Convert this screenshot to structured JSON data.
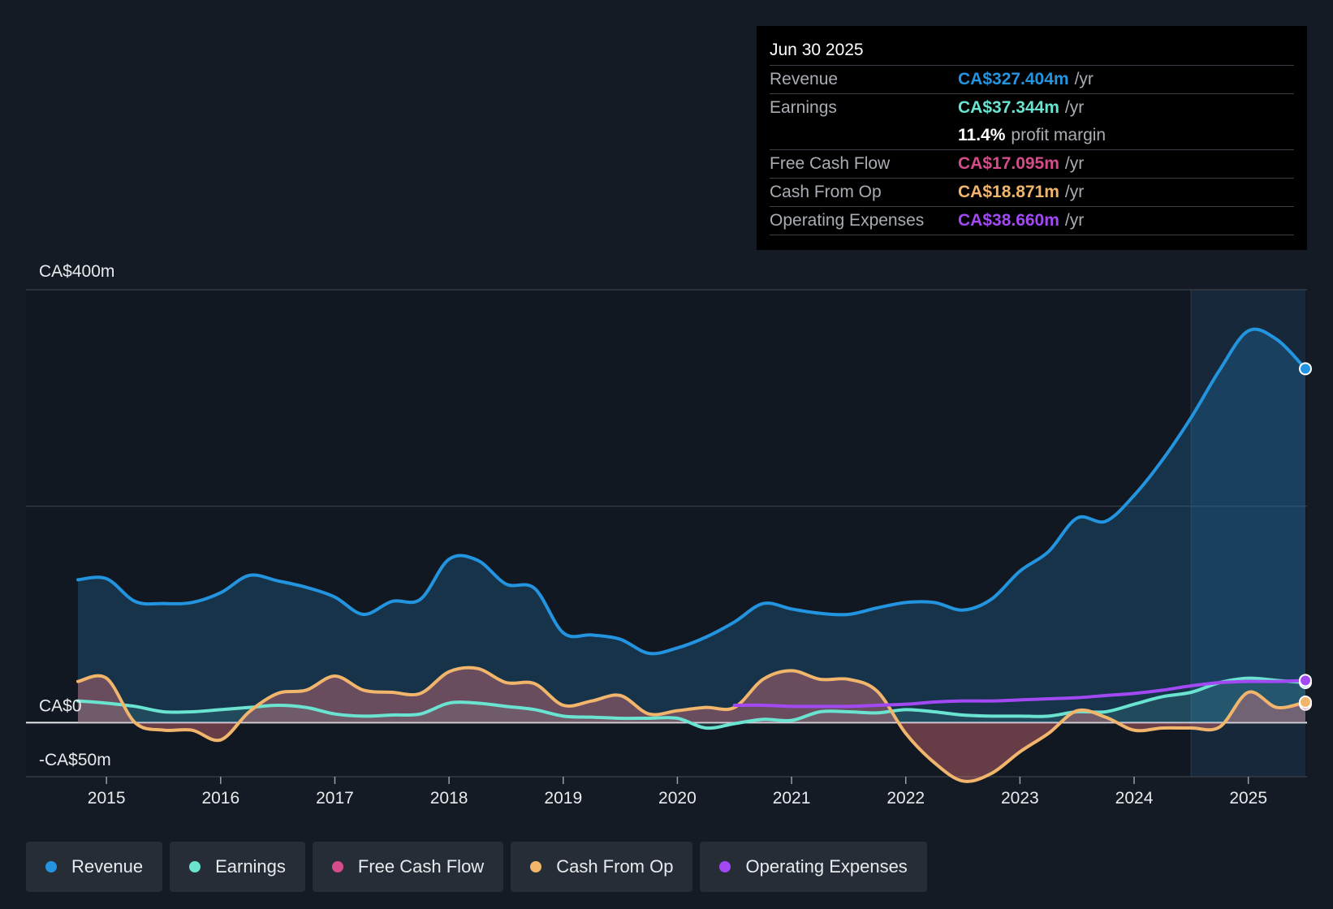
{
  "tooltip": {
    "date": "Jun 30 2025",
    "rows": [
      {
        "label": "Revenue",
        "value": "CA$327.404m",
        "unit": "/yr",
        "color": "#2394df"
      },
      {
        "label": "Earnings",
        "value": "CA$37.344m",
        "unit": "/yr",
        "color": "#6be3d1"
      },
      {
        "label": "Free Cash Flow",
        "value": "CA$17.095m",
        "unit": "/yr",
        "color": "#d44d8a"
      },
      {
        "label": "Cash From Op",
        "value": "CA$18.871m",
        "unit": "/yr",
        "color": "#f1b56b"
      },
      {
        "label": "Operating Expenses",
        "value": "CA$38.660m",
        "unit": "/yr",
        "color": "#a249f4"
      }
    ],
    "margin_value": "11.4%",
    "margin_label": "profit margin"
  },
  "legend": [
    {
      "label": "Revenue",
      "color": "#2394df"
    },
    {
      "label": "Earnings",
      "color": "#6be3d1"
    },
    {
      "label": "Free Cash Flow",
      "color": "#d44d8a"
    },
    {
      "label": "Cash From Op",
      "color": "#f1b56b"
    },
    {
      "label": "Operating Expenses",
      "color": "#a249f4"
    }
  ],
  "chart_data": {
    "type": "area",
    "title": "",
    "xlabel": "",
    "ylabel": "",
    "ylim": [
      -50,
      400
    ],
    "xlim": [
      2014.75,
      2025.5
    ],
    "y_tick_labels": [
      {
        "value": 400,
        "label": "CA$400m"
      },
      {
        "value": 0,
        "label": "CA$0"
      },
      {
        "value": -50,
        "label": "-CA$50m"
      }
    ],
    "gridlines": [
      400,
      200,
      0,
      -50
    ],
    "x_ticks": [
      2015,
      2016,
      2017,
      2018,
      2019,
      2020,
      2021,
      2022,
      2023,
      2024,
      2025
    ],
    "highlight_from": 2024.5,
    "series": [
      {
        "name": "Revenue",
        "color": "#2394df",
        "fill": true,
        "x": [
          2014.75,
          2015.0,
          2015.25,
          2015.5,
          2015.75,
          2016.0,
          2016.25,
          2016.5,
          2016.75,
          2017.0,
          2017.25,
          2017.5,
          2017.75,
          2018.0,
          2018.25,
          2018.5,
          2018.75,
          2019.0,
          2019.25,
          2019.5,
          2019.75,
          2020.0,
          2020.25,
          2020.5,
          2020.75,
          2021.0,
          2021.25,
          2021.5,
          2021.75,
          2022.0,
          2022.25,
          2022.5,
          2022.75,
          2023.0,
          2023.25,
          2023.5,
          2023.75,
          2024.0,
          2024.25,
          2024.5,
          2024.75,
          2025.0,
          2025.25,
          2025.5
        ],
        "values": [
          132,
          133,
          112,
          110,
          111,
          120,
          136,
          131,
          125,
          116,
          100,
          112,
          114,
          151,
          150,
          128,
          124,
          83,
          81,
          77,
          64,
          69,
          79,
          93,
          110,
          105,
          101,
          100,
          106,
          111,
          111,
          104,
          114,
          140,
          158,
          189,
          186,
          210,
          243,
          282,
          326,
          362,
          354,
          327
        ]
      },
      {
        "name": "Earnings",
        "color": "#6be3d1",
        "fill": true,
        "x": [
          2014.75,
          2015.0,
          2015.25,
          2015.5,
          2015.75,
          2016.0,
          2016.25,
          2016.5,
          2016.75,
          2017.0,
          2017.25,
          2017.5,
          2017.75,
          2018.0,
          2018.25,
          2018.5,
          2018.75,
          2019.0,
          2019.25,
          2019.5,
          2019.75,
          2020.0,
          2020.25,
          2020.5,
          2020.75,
          2021.0,
          2021.25,
          2021.5,
          2021.75,
          2022.0,
          2022.25,
          2022.5,
          2022.75,
          2023.0,
          2023.25,
          2023.5,
          2023.75,
          2024.0,
          2024.25,
          2024.5,
          2024.75,
          2025.0,
          2025.25,
          2025.5
        ],
        "values": [
          20,
          18,
          15,
          10,
          10,
          12,
          14,
          16,
          14,
          8,
          6,
          7,
          8,
          18,
          18,
          15,
          12,
          6,
          5,
          4,
          4,
          4,
          -5,
          -1,
          3,
          2,
          10,
          10,
          9,
          12,
          10,
          7,
          6,
          6,
          6,
          10,
          10,
          17,
          24,
          28,
          37,
          41,
          39,
          37
        ]
      },
      {
        "name": "Free Cash Flow",
        "color": "#d44d8a",
        "fill": true,
        "x": [
          2014.75,
          2015.0,
          2015.25,
          2015.5,
          2015.75,
          2016.0,
          2016.25,
          2016.5,
          2016.75,
          2017.0,
          2017.25,
          2017.5,
          2017.75,
          2018.0,
          2018.25,
          2018.5,
          2018.75,
          2019.0,
          2019.25,
          2019.5,
          2019.75,
          2020.0,
          2020.25,
          2020.5,
          2020.75,
          2021.0,
          2021.25,
          2021.5,
          2021.75,
          2022.0,
          2022.25,
          2022.5,
          2022.75,
          2023.0,
          2023.25,
          2023.5,
          2023.75,
          2024.0,
          2024.25,
          2024.5,
          2024.75,
          2025.0,
          2025.25,
          2025.5
        ],
        "values": [
          38,
          41,
          0,
          -7,
          -7,
          -16,
          10,
          27,
          30,
          43,
          30,
          28,
          27,
          47,
          50,
          37,
          36,
          16,
          20,
          25,
          8,
          11,
          14,
          14,
          40,
          48,
          40,
          40,
          29,
          -10,
          -37,
          -54,
          -47,
          -27,
          -10,
          11,
          5,
          -7,
          -5,
          -5,
          -4,
          28,
          14,
          17
        ]
      },
      {
        "name": "Cash From Op",
        "color": "#f1b56b",
        "fill": true,
        "x": [
          2014.75,
          2015.0,
          2015.25,
          2015.5,
          2015.75,
          2016.0,
          2016.25,
          2016.5,
          2016.75,
          2017.0,
          2017.25,
          2017.5,
          2017.75,
          2018.0,
          2018.25,
          2018.5,
          2018.75,
          2019.0,
          2019.25,
          2019.5,
          2019.75,
          2020.0,
          2020.25,
          2020.5,
          2020.75,
          2021.0,
          2021.25,
          2021.5,
          2021.75,
          2022.0,
          2022.25,
          2022.5,
          2022.75,
          2023.0,
          2023.25,
          2023.5,
          2023.75,
          2024.0,
          2024.25,
          2024.5,
          2024.75,
          2025.0,
          2025.25,
          2025.5
        ],
        "values": [
          38,
          41,
          0,
          -7,
          -7,
          -16,
          10,
          27,
          30,
          43,
          30,
          28,
          27,
          47,
          50,
          37,
          36,
          16,
          20,
          25,
          8,
          11,
          14,
          14,
          40,
          48,
          40,
          40,
          29,
          -10,
          -37,
          -54,
          -47,
          -27,
          -10,
          11,
          5,
          -7,
          -5,
          -5,
          -4,
          28,
          14,
          19
        ]
      },
      {
        "name": "Operating Expenses",
        "color": "#a249f4",
        "fill": false,
        "x": [
          2020.5,
          2020.75,
          2021.0,
          2021.25,
          2021.5,
          2021.75,
          2022.0,
          2022.25,
          2022.5,
          2022.75,
          2023.0,
          2023.25,
          2023.5,
          2023.75,
          2024.0,
          2024.25,
          2024.5,
          2024.75,
          2025.0,
          2025.25,
          2025.5
        ],
        "values": [
          16,
          16,
          15,
          15,
          15,
          16,
          17,
          19,
          20,
          20,
          21,
          22,
          23,
          25,
          27,
          30,
          34,
          37,
          38,
          38,
          39
        ]
      }
    ]
  }
}
